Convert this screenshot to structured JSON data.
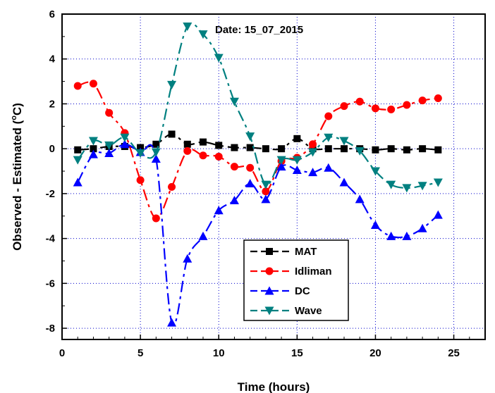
{
  "chart_data": {
    "type": "line",
    "annotation": "Date: 15_07_2015",
    "xlabel": "Time (hours)",
    "ylabel": "Observed - Estimated (°C)",
    "ylabel_parts": {
      "before": "Observed - Estimated (",
      "sup": "o",
      "after": "C)"
    },
    "xlim": [
      0,
      27
    ],
    "ylim": [
      -8.5,
      6
    ],
    "xticks": [
      0,
      5,
      10,
      15,
      20,
      25
    ],
    "yticks": [
      -8,
      -6,
      -4,
      -2,
      0,
      2,
      4,
      6
    ],
    "grid": true,
    "legend_position": "bottom-center",
    "series": [
      {
        "name": "MAT",
        "color": "#000000",
        "marker": "square",
        "x": [
          1,
          2,
          3,
          4,
          5,
          6,
          7,
          8,
          9,
          10,
          11,
          12,
          13,
          14,
          15,
          16,
          17,
          18,
          19,
          20,
          21,
          22,
          23,
          24
        ],
        "y": [
          -0.05,
          0.0,
          0.1,
          0.1,
          0.05,
          0.2,
          0.65,
          0.2,
          0.3,
          0.15,
          0.05,
          0.05,
          0.0,
          0.0,
          0.45,
          0.0,
          0.0,
          0.0,
          0.0,
          -0.05,
          0.0,
          -0.05,
          0.0,
          -0.05
        ]
      },
      {
        "name": "Idliman",
        "color": "#ff0000",
        "marker": "circle",
        "x": [
          1,
          2,
          3,
          4,
          5,
          6,
          7,
          8,
          9,
          10,
          11,
          12,
          13,
          14,
          15,
          16,
          17,
          18,
          19,
          20,
          21,
          22,
          23,
          24
        ],
        "y": [
          2.8,
          2.9,
          1.6,
          0.7,
          -1.4,
          -3.1,
          -1.7,
          -0.1,
          -0.3,
          -0.35,
          -0.8,
          -0.85,
          -1.9,
          -0.55,
          -0.4,
          0.2,
          1.45,
          1.9,
          2.1,
          1.8,
          1.75,
          1.95,
          2.15,
          2.25
        ]
      },
      {
        "name": "DC",
        "color": "#0000ff",
        "marker": "triangle-up",
        "x": [
          1,
          2,
          3,
          4,
          5,
          6,
          7,
          8,
          9,
          10,
          11,
          12,
          13,
          14,
          15,
          16,
          17,
          18,
          19,
          20,
          21,
          22,
          23,
          24
        ],
        "y": [
          -1.5,
          -0.25,
          -0.2,
          0.2,
          -0.15,
          -0.45,
          -7.75,
          -4.9,
          -3.9,
          -2.75,
          -2.3,
          -1.55,
          -2.25,
          -0.8,
          -0.95,
          -1.05,
          -0.85,
          -1.5,
          -2.25,
          -3.4,
          -3.9,
          -3.9,
          -3.55,
          -2.95
        ]
      },
      {
        "name": "Wave",
        "color": "#008080",
        "marker": "triangle-down",
        "x": [
          1,
          2,
          3,
          4,
          5,
          6,
          7,
          8,
          9,
          10,
          11,
          12,
          13,
          14,
          15,
          16,
          17,
          18,
          19,
          20,
          21,
          22,
          23,
          24
        ],
        "y": [
          -0.5,
          0.35,
          0.15,
          0.5,
          -0.2,
          -0.15,
          2.85,
          5.45,
          5.1,
          4.05,
          2.1,
          0.55,
          -1.6,
          -0.5,
          -0.5,
          -0.15,
          0.5,
          0.35,
          -0.1,
          -1.0,
          -1.6,
          -1.75,
          -1.65,
          -1.5
        ]
      }
    ]
  }
}
